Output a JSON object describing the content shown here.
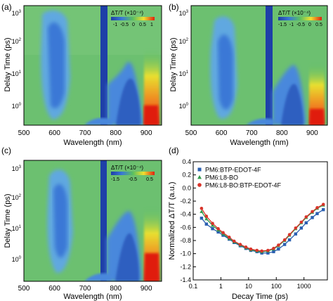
{
  "chart_data": [
    {
      "panel_label": "(a)",
      "type": "heatmap",
      "xlabel": "Wavelength (nm)",
      "ylabel": "Delay Time (ps)",
      "xlim": [
        500,
        950
      ],
      "ylim": [
        0.3,
        2000
      ],
      "yscale": "log",
      "x_ticks": [
        500,
        600,
        700,
        800,
        900
      ],
      "y_ticks": [
        "10^0",
        "10^1",
        "10^2",
        "10^3"
      ],
      "colorbar": {
        "title": "ΔT/T (×10⁻⁴)",
        "ticks": [
          "-1",
          "-0.5",
          "0",
          "0.5",
          "1"
        ],
        "colors": [
          "#1e3fa8",
          "#3a78d6",
          "#58c060",
          "#f0e030",
          "#e02010"
        ]
      }
    },
    {
      "panel_label": "(b)",
      "type": "heatmap",
      "xlabel": "Wavelength (nm)",
      "ylabel": "Delay Time (ps)",
      "xlim": [
        500,
        950
      ],
      "ylim": [
        0.3,
        2000
      ],
      "yscale": "log",
      "x_ticks": [
        500,
        600,
        700,
        800,
        900
      ],
      "y_ticks": [
        "10^0",
        "10^1",
        "10^2",
        "10^3"
      ],
      "colorbar": {
        "title": "ΔT/T (×10⁻⁴)",
        "ticks": [
          "-1.5",
          "-1",
          "-0.5",
          "0",
          "0.5"
        ],
        "colors": [
          "#1e3fa8",
          "#3a78d6",
          "#58c060",
          "#f0e030",
          "#e02010"
        ]
      }
    },
    {
      "panel_label": "(c)",
      "type": "heatmap",
      "xlabel": "Wavelength (nm)",
      "ylabel": "Delay Time (ps)",
      "xlim": [
        500,
        950
      ],
      "ylim": [
        0.3,
        2000
      ],
      "yscale": "log",
      "x_ticks": [
        500,
        600,
        700,
        800,
        900
      ],
      "y_ticks": [
        "10^0",
        "10^1",
        "10^2",
        "10^3"
      ],
      "colorbar": {
        "title": "ΔT/T (×10⁻⁴)",
        "ticks": [
          "-1.5",
          "-0.5",
          "0.5"
        ],
        "colors": [
          "#1e3fa8",
          "#3a78d6",
          "#58c060",
          "#f0e030",
          "#e02010"
        ]
      }
    },
    {
      "panel_label": "(d)",
      "type": "scatter",
      "xlabel": "Decay Time (ps)",
      "ylabel": "Normalized ΔT/T (a.u.)",
      "xscale": "log",
      "xlim": [
        0.1,
        7000
      ],
      "ylim": [
        -1.4,
        0.4
      ],
      "x_ticks": [
        0.1,
        1,
        10,
        100,
        1000
      ],
      "x_tick_labels": [
        "0.1",
        "1",
        "10",
        "100",
        "1000"
      ],
      "y_ticks": [
        0.4,
        0.2,
        0.0,
        -0.2,
        -0.4,
        -0.6,
        -0.8,
        -1.0,
        -1.2,
        -1.4
      ],
      "y_tick_labels": [
        "0.4",
        "0.2",
        "0.0",
        "-0.2",
        "-0.4",
        "-0.6",
        "-0.8",
        "-1.0",
        "-1.2",
        "-1.4"
      ],
      "legend_position": "top-left",
      "series": [
        {
          "name": "PM6:BTP-EDOT-4F",
          "color": "#2a5fb0",
          "marker": "square",
          "x": [
            0.2,
            0.3,
            0.5,
            0.8,
            1.2,
            2,
            3,
            5,
            8,
            12,
            20,
            30,
            50,
            80,
            120,
            200,
            300,
            500,
            800,
            1200,
            2000,
            3000,
            5000
          ],
          "y": [
            -0.46,
            -0.55,
            -0.62,
            -0.67,
            -0.72,
            -0.78,
            -0.83,
            -0.88,
            -0.92,
            -0.95,
            -0.97,
            -0.99,
            -0.99,
            -0.97,
            -0.93,
            -0.86,
            -0.79,
            -0.7,
            -0.61,
            -0.53,
            -0.45,
            -0.39,
            -0.33
          ]
        },
        {
          "name": "PM6:L8-BO",
          "color": "#2e9a4a",
          "marker": "triangle",
          "x": [
            0.2,
            0.3,
            0.5,
            0.8,
            1.2,
            2,
            3,
            5,
            8,
            12,
            20,
            30,
            50,
            80,
            120,
            200,
            300,
            500,
            800,
            1200,
            2000,
            3000,
            5000
          ],
          "y": [
            -0.36,
            -0.47,
            -0.57,
            -0.64,
            -0.7,
            -0.77,
            -0.82,
            -0.87,
            -0.91,
            -0.94,
            -0.96,
            -0.97,
            -0.96,
            -0.93,
            -0.88,
            -0.8,
            -0.72,
            -0.62,
            -0.53,
            -0.45,
            -0.37,
            -0.31,
            -0.26
          ]
        },
        {
          "name": "PM6:L8-BO:BTP-EDOT-4F",
          "color": "#d9342a",
          "marker": "circle",
          "x": [
            0.2,
            0.3,
            0.5,
            0.8,
            1.2,
            2,
            3,
            5,
            8,
            12,
            20,
            30,
            50,
            80,
            120,
            200,
            300,
            500,
            800,
            1200,
            2000,
            3000,
            5000
          ],
          "y": [
            -0.31,
            -0.43,
            -0.54,
            -0.62,
            -0.68,
            -0.75,
            -0.81,
            -0.86,
            -0.9,
            -0.93,
            -0.95,
            -0.96,
            -0.95,
            -0.92,
            -0.87,
            -0.79,
            -0.71,
            -0.61,
            -0.52,
            -0.44,
            -0.36,
            -0.3,
            -0.25
          ]
        }
      ]
    }
  ]
}
